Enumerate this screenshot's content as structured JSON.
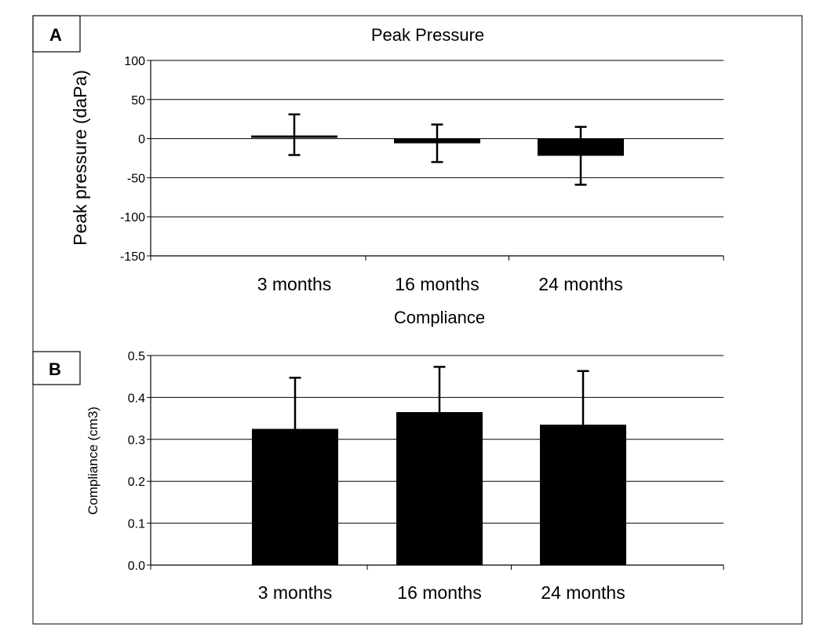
{
  "chart_data": [
    {
      "panel": "A",
      "type": "bar",
      "title": "Peak Pressure",
      "xlabel": "",
      "ylabel": "Peak pressure (daPa)",
      "categories": [
        "3 months",
        "16 months",
        "24 months"
      ],
      "series": [
        {
          "values": [
            3,
            -6,
            -22
          ],
          "error_plus": [
            28,
            24,
            37
          ],
          "error_minus": [
            24,
            24,
            37
          ]
        }
      ],
      "ylim": [
        -150,
        100
      ],
      "yticks": [
        100,
        50,
        0,
        -50,
        -100,
        -150
      ],
      "ytick_labels": [
        "100",
        "50",
        "0",
        "-50",
        "-100",
        "-150"
      ],
      "grid": true,
      "legend": "none",
      "colors": {
        "bar": "#000000",
        "grid": "#000000"
      }
    },
    {
      "panel": "B",
      "type": "bar",
      "title": "Compliance",
      "xlabel": "",
      "ylabel": "Compliance (cm3)",
      "categories": [
        "3 months",
        "16 months",
        "24 months"
      ],
      "series": [
        {
          "values": [
            0.325,
            0.365,
            0.335
          ],
          "error_plus": [
            0.122,
            0.108,
            0.128
          ]
        }
      ],
      "ylim": [
        0,
        0.5
      ],
      "yticks": [
        0.5,
        0.4,
        0.3,
        0.2,
        0.1,
        0.0
      ],
      "ytick_labels": [
        "0.5",
        "0.4",
        "0.3",
        "0.2",
        "0.1",
        "0.0"
      ],
      "grid": true,
      "legend": "none",
      "colors": {
        "bar": "#000000",
        "grid": "#000000"
      }
    }
  ]
}
